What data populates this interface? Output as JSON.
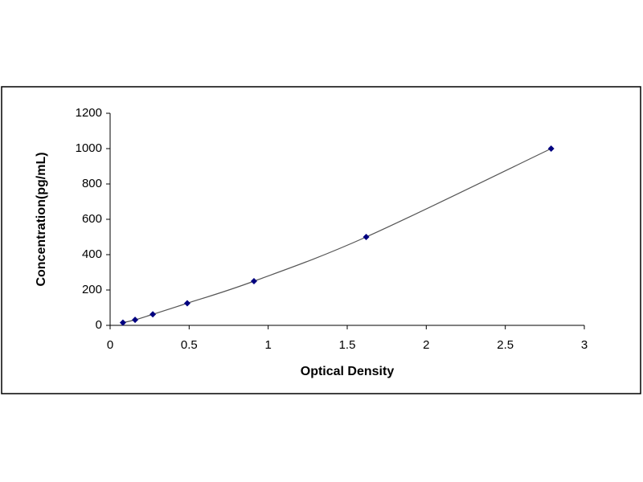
{
  "chart_data": {
    "type": "scatter",
    "xlabel": "Optical Density",
    "ylabel": "Concentration(pg/mL)",
    "x": [
      0.081,
      0.158,
      0.27,
      0.488,
      0.91,
      1.62,
      2.79
    ],
    "values": [
      15.6,
      31.25,
      62.5,
      125,
      250,
      500,
      1000
    ],
    "color": "#000080",
    "line_color": "#555555",
    "line": true,
    "xlim": [
      0,
      3
    ],
    "xticks": [
      0,
      0.5,
      1,
      1.5,
      2,
      2.5,
      3
    ],
    "ylim": [
      0,
      1200
    ],
    "yticks": [
      0,
      200,
      400,
      600,
      800,
      1000,
      1200
    ],
    "grid": false
  }
}
